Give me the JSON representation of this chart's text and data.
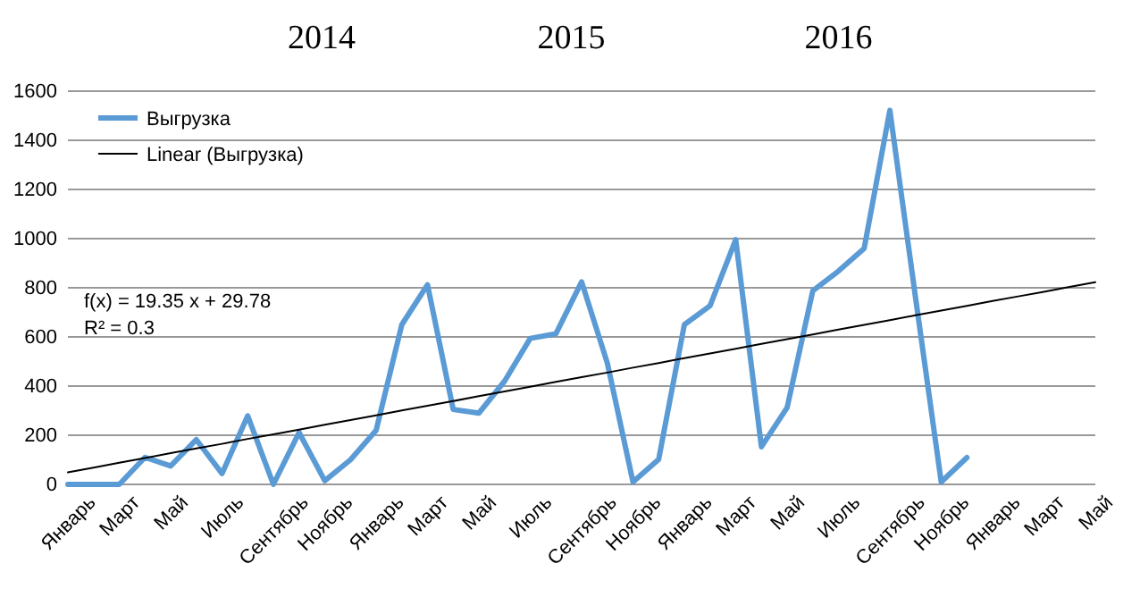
{
  "chart_data": {
    "type": "line",
    "categories": [
      "Январь",
      null,
      "Март",
      null,
      "Май",
      null,
      "Июль",
      null,
      "Сентябрь",
      null,
      "Ноябрь",
      null,
      "Январь",
      null,
      "Март",
      null,
      "Май",
      null,
      "Июль",
      null,
      "Сентябрь",
      null,
      "Ноябрь",
      null,
      "Январь",
      null,
      "Март",
      null,
      "Май",
      null,
      "Июль",
      null,
      "Сентябрь",
      null,
      "Ноябрь",
      null,
      "Январь",
      null,
      "Март",
      null,
      "Май"
    ],
    "series": [
      {
        "name": "Выгрузка",
        "color": "#5b9bd5",
        "values": [
          0,
          0,
          0,
          110,
          75,
          182,
          44,
          279,
          0,
          211,
          15,
          100,
          220,
          650,
          812,
          305,
          290,
          420,
          594,
          613,
          824,
          494,
          10,
          102,
          650,
          727,
          996,
          153,
          312,
          788,
          868,
          960,
          1522,
          760,
          10,
          109,
          null,
          null,
          null,
          null,
          null
        ]
      },
      {
        "name": "Linear (Выгрузка)",
        "color": "#000000",
        "values": [
          49,
          68,
          88,
          107,
          127,
          146,
          165,
          185,
          204,
          223,
          243,
          262,
          281,
          301,
          320,
          339,
          359,
          378,
          397,
          417,
          436,
          455,
          475,
          494,
          514,
          533,
          552,
          572,
          591,
          610,
          630,
          649,
          668,
          688,
          707,
          726,
          746,
          765,
          784,
          804,
          823
        ]
      }
    ],
    "ylim": [
      0,
      1600
    ],
    "yticks": [
      0,
      200,
      400,
      600,
      800,
      1000,
      1200,
      1400,
      1600
    ],
    "grid": "y",
    "legend": "top left",
    "annotations": [
      "2014",
      "2015",
      "2016",
      "f(x) = 19.35 x + 29.78",
      "R² = 0.3"
    ]
  }
}
